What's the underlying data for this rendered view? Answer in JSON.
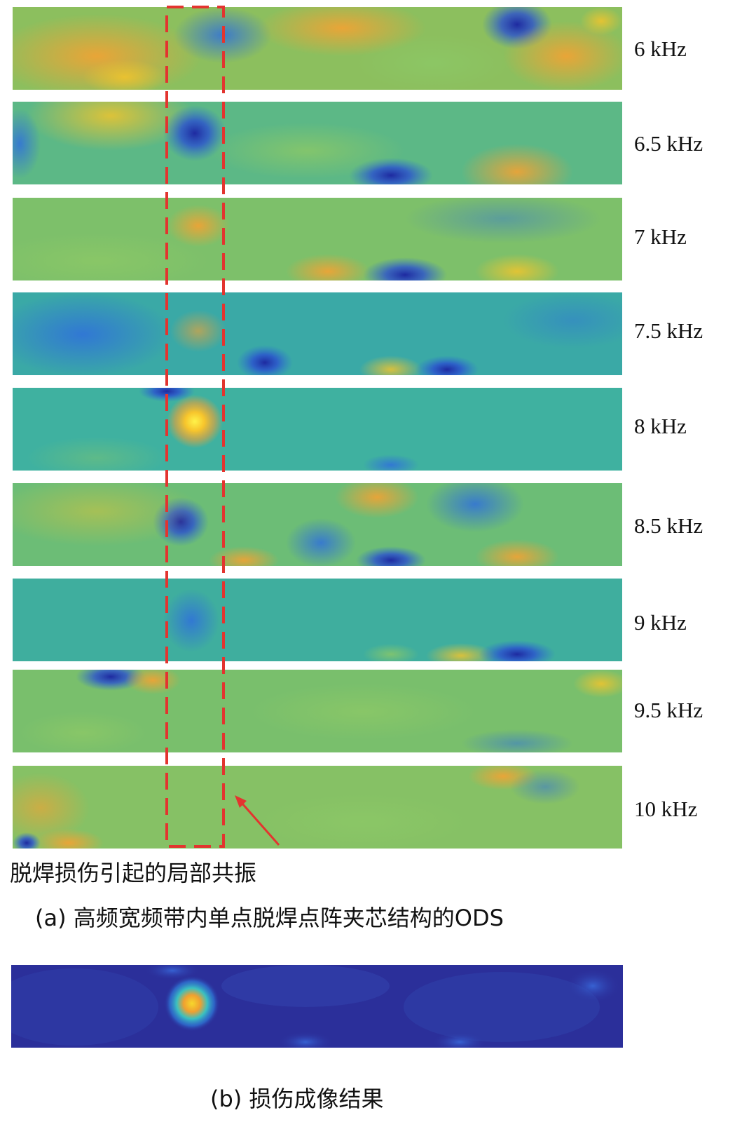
{
  "figure": {
    "ods_panels": [
      {
        "frequency_label": "6 kHz"
      },
      {
        "frequency_label": "6.5 kHz"
      },
      {
        "frequency_label": "7 kHz"
      },
      {
        "frequency_label": "7.5 kHz"
      },
      {
        "frequency_label": "8 kHz"
      },
      {
        "frequency_label": "8.5 kHz"
      },
      {
        "frequency_label": "9 kHz"
      },
      {
        "frequency_label": "9.5 kHz"
      },
      {
        "frequency_label": "10 kHz"
      }
    ],
    "annotation": "脱焊损伤引起的局部共振",
    "caption_a": "(a) 高频宽频带内单点脱焊点阵夹芯结构的ODS",
    "caption_b": "(b) 损伤成像结果",
    "colors": {
      "field_base": "#3aae9c",
      "field_green": "#78c06a",
      "field_yellow": "#f2c42c",
      "field_orange": "#f3a233",
      "field_blue": "#2a4fd0",
      "field_deep_blue": "#1e2aa0",
      "result_base": "#2b2f9a",
      "highlight_box": "#e3342f",
      "arrow": "#e3342f"
    }
  }
}
